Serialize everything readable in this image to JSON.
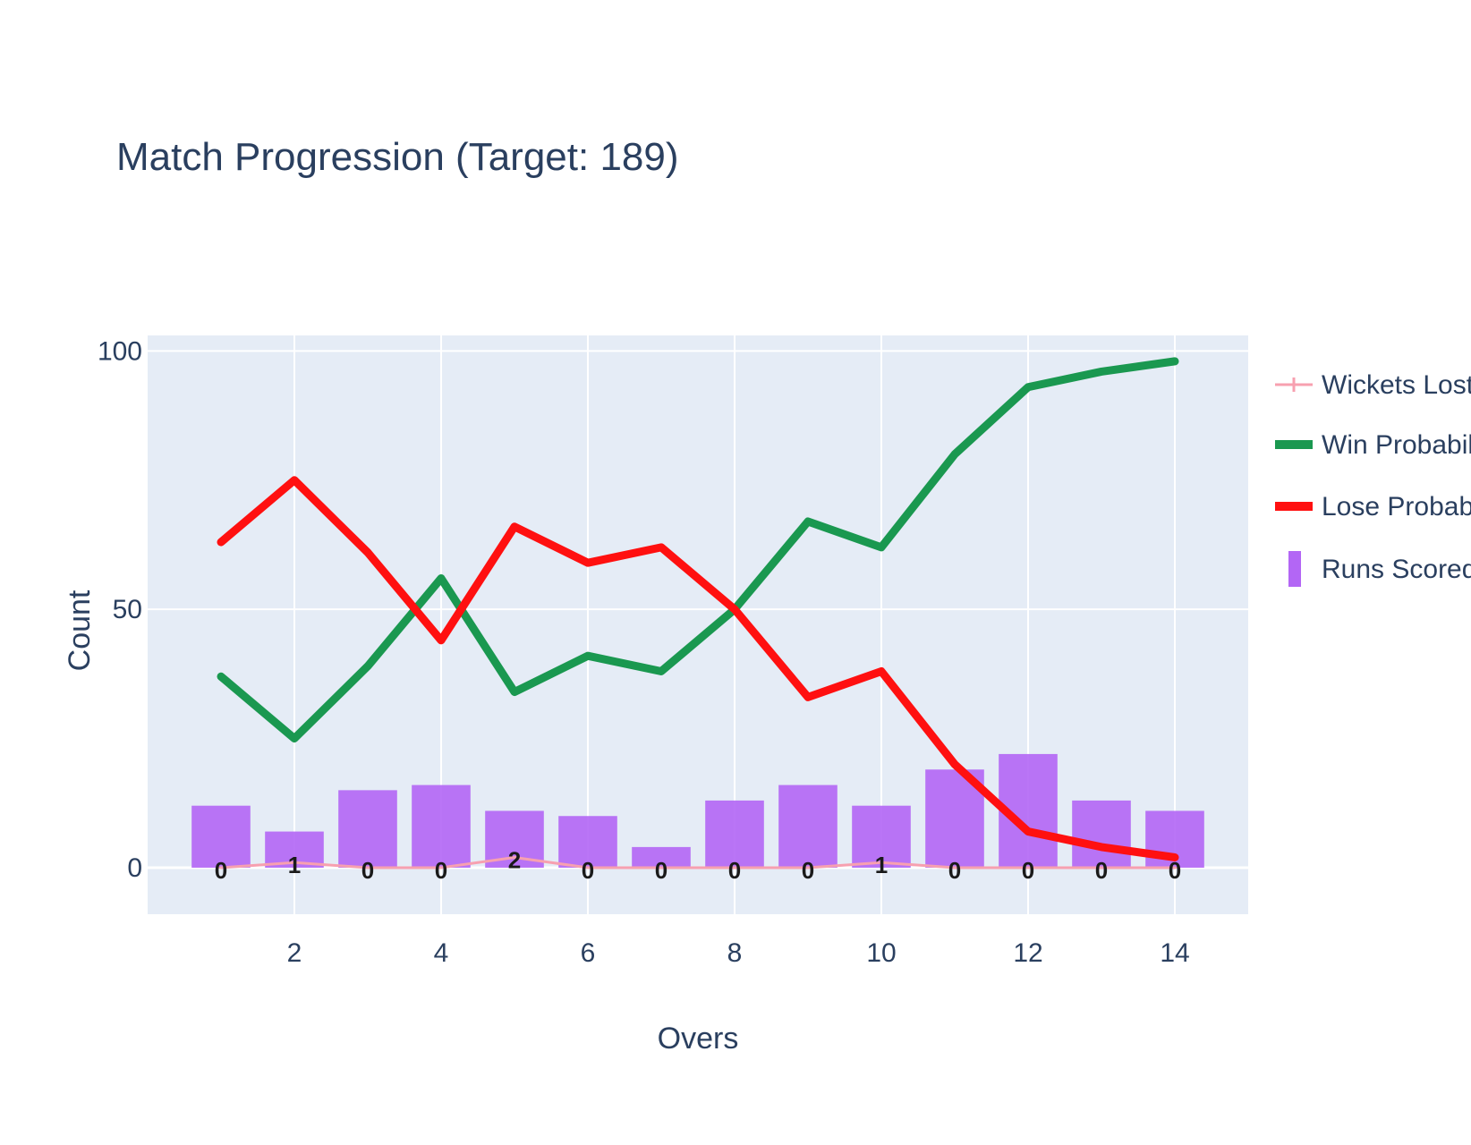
{
  "chart_data": {
    "type": "line",
    "title": "Match Progression (Target: 189)",
    "xlabel": "Overs",
    "ylabel": "Count",
    "xlim": [
      0,
      15
    ],
    "ylim": [
      -9,
      103
    ],
    "x_ticks": [
      2,
      4,
      6,
      8,
      10,
      12,
      14
    ],
    "y_ticks": [
      0,
      50,
      100
    ],
    "grid": true,
    "legend_position": "right",
    "x": [
      1,
      2,
      3,
      4,
      5,
      6,
      7,
      8,
      9,
      10,
      11,
      12,
      13,
      14
    ],
    "bars": {
      "name": "Runs Scored",
      "color": "#b366f5",
      "values": [
        12,
        7,
        15,
        16,
        11,
        10,
        4,
        13,
        16,
        12,
        19,
        22,
        13,
        11
      ]
    },
    "series": [
      {
        "name": "Wickets Lost",
        "color": "#f7a0b0",
        "values": [
          0,
          1,
          0,
          0,
          2,
          0,
          0,
          0,
          0,
          1,
          0,
          0,
          0,
          0
        ],
        "labels": [
          "0",
          "1",
          "0",
          "0",
          "2",
          "0",
          "0",
          "0",
          "0",
          "1",
          "0",
          "0",
          "0",
          "0"
        ]
      },
      {
        "name": "Win Probability",
        "color": "#1a9850",
        "values": [
          37,
          25,
          39,
          56,
          34,
          41,
          38,
          50,
          67,
          62,
          80,
          93,
          96,
          98
        ]
      },
      {
        "name": "Lose Probability",
        "color": "#ff1010",
        "values": [
          63,
          75,
          61,
          44,
          66,
          59,
          62,
          50,
          33,
          38,
          20,
          7,
          4,
          2
        ]
      }
    ]
  },
  "legend": {
    "items": [
      "Wickets Lost",
      "Win Probability",
      "Lose Probability",
      "Runs Scored"
    ]
  }
}
